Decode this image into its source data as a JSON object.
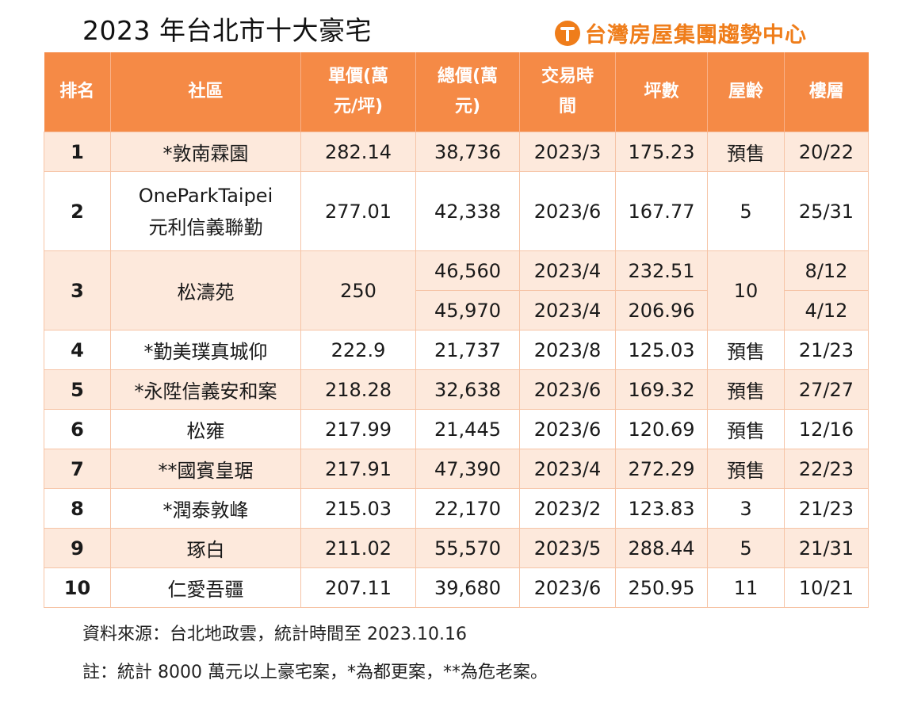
{
  "title": "2023 年台北市十大豪宅",
  "brand": "台灣房屋集團趨勢中心",
  "colors": {
    "header_bg": "#f58a46",
    "row_shade": "#fde9dc",
    "brand": "#ef7d1a"
  },
  "headers": {
    "rank": "排名",
    "community": "社區",
    "unit_price_1": "單價(萬",
    "unit_price_2": "元/坪)",
    "total_price_1": "總價(萬",
    "total_price_2": "元)",
    "date_1": "交易時",
    "date_2": "間",
    "area": "坪數",
    "age": "屋齡",
    "floor": "樓層"
  },
  "rows": [
    {
      "rank": "1",
      "name": "*敦南霖園",
      "unit_price": "282.14",
      "total": "38,736",
      "date": "2023/3",
      "area": "175.23",
      "age": "預售",
      "floor": "20/22"
    },
    {
      "rank": "2",
      "name_1": "OneParkTaipei",
      "name_2": "元利信義聯勤",
      "unit_price": "277.01",
      "total": "42,338",
      "date": "2023/6",
      "area": "167.77",
      "age": "5",
      "floor": "25/31"
    },
    {
      "rank": "3",
      "name": "松濤苑",
      "unit_price": "250",
      "age": "10",
      "deals": [
        {
          "total": "46,560",
          "date": "2023/4",
          "area": "232.51",
          "floor": "8/12"
        },
        {
          "total": "45,970",
          "date": "2023/4",
          "area": "206.96",
          "floor": "4/12"
        }
      ]
    },
    {
      "rank": "4",
      "name": "*勤美璞真城仰",
      "unit_price": "222.9",
      "total": "21,737",
      "date": "2023/8",
      "area": "125.03",
      "age": "預售",
      "floor": "21/23"
    },
    {
      "rank": "5",
      "name": "*永陞信義安和案",
      "unit_price": "218.28",
      "total": "32,638",
      "date": "2023/6",
      "area": "169.32",
      "age": "預售",
      "floor": "27/27"
    },
    {
      "rank": "6",
      "name": "松雍",
      "unit_price": "217.99",
      "total": "21,445",
      "date": "2023/6",
      "area": "120.69",
      "age": "預售",
      "floor": "12/16"
    },
    {
      "rank": "7",
      "name": "**國賓皇琚",
      "unit_price": "217.91",
      "total": "47,390",
      "date": "2023/4",
      "area": "272.29",
      "age": "預售",
      "floor": "22/23"
    },
    {
      "rank": "8",
      "name": "*潤泰敦峰",
      "unit_price": "215.03",
      "total": "22,170",
      "date": "2023/2",
      "area": "123.83",
      "age": "3",
      "floor": "21/23"
    },
    {
      "rank": "9",
      "name": "琢白",
      "unit_price": "211.02",
      "total": "55,570",
      "date": "2023/5",
      "area": "288.44",
      "age": "5",
      "floor": "21/31"
    },
    {
      "rank": "10",
      "name": "仁愛吾疆",
      "unit_price": "207.11",
      "total": "39,680",
      "date": "2023/6",
      "area": "250.95",
      "age": "11",
      "floor": "10/21"
    }
  ],
  "source_note": "資料來源：台北地政雲，統計時間至 2023.10.16",
  "footnote": "註：統計 8000 萬元以上豪宅案，*為都更案，**為危老案。"
}
